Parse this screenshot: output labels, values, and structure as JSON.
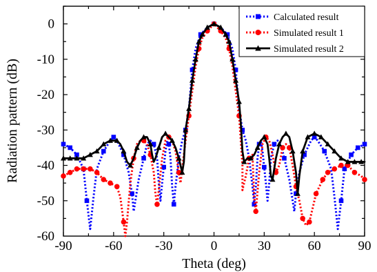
{
  "chart_data": {
    "type": "line",
    "xlabel": "Theta (deg)",
    "ylabel": "Radiation pattern (dB)",
    "xlim": [
      -90,
      90
    ],
    "ylim": [
      -60,
      5
    ],
    "xticks": [
      -90,
      -60,
      -30,
      0,
      30,
      60,
      90
    ],
    "yticks": [
      0,
      -10,
      -20,
      -30,
      -40,
      -50,
      -60
    ],
    "xtick_labels": [
      "-90",
      "-60",
      "-30",
      "0",
      "30",
      "60",
      "90"
    ],
    "ytick_labels": [
      "0",
      "-10",
      "-20",
      "-30",
      "-40",
      "-50",
      "-60"
    ],
    "grid": false,
    "legend_position": "top-right",
    "series": [
      {
        "name": "Calculated result",
        "color": "#0000ff",
        "line_style": "dotted",
        "marker": "square",
        "points": [
          [
            -90,
            -34
          ],
          [
            -86,
            -35
          ],
          [
            -82,
            -37
          ],
          [
            -78,
            -41
          ],
          [
            -76,
            -50
          ],
          [
            -74,
            -58
          ],
          [
            -72,
            -49
          ],
          [
            -70,
            -41
          ],
          [
            -66,
            -36
          ],
          [
            -62,
            -33
          ],
          [
            -60,
            -32
          ],
          [
            -58,
            -33
          ],
          [
            -54,
            -37
          ],
          [
            -51,
            -42
          ],
          [
            -49,
            -48
          ],
          [
            -48,
            -53
          ],
          [
            -47,
            -50
          ],
          [
            -45,
            -44
          ],
          [
            -42,
            -38
          ],
          [
            -40,
            -34
          ],
          [
            -38,
            -33
          ],
          [
            -36,
            -34
          ],
          [
            -34,
            -38
          ],
          [
            -33,
            -45
          ],
          [
            -32,
            -50
          ],
          [
            -31,
            -45
          ],
          [
            -29,
            -36
          ],
          [
            -28,
            -33
          ],
          [
            -27,
            -34
          ],
          [
            -26,
            -38
          ],
          [
            -25,
            -46
          ],
          [
            -24,
            -51
          ],
          [
            -23,
            -46
          ],
          [
            -21,
            -38
          ],
          [
            -19,
            -33
          ],
          [
            -17,
            -30
          ],
          [
            -15,
            -24
          ],
          [
            -13,
            -13
          ],
          [
            -11,
            -7
          ],
          [
            -8,
            -3
          ],
          [
            -4,
            -1
          ],
          [
            0,
            0
          ],
          [
            4,
            -1
          ],
          [
            8,
            -3
          ],
          [
            11,
            -7
          ],
          [
            13,
            -13
          ],
          [
            15,
            -24
          ],
          [
            17,
            -30
          ],
          [
            19,
            -33
          ],
          [
            21,
            -38
          ],
          [
            23,
            -46
          ],
          [
            24,
            -51
          ],
          [
            25,
            -46
          ],
          [
            26,
            -38
          ],
          [
            27,
            -34
          ],
          [
            28,
            -33
          ],
          [
            29,
            -36
          ],
          [
            31,
            -45
          ],
          [
            32,
            -50
          ],
          [
            33,
            -45
          ],
          [
            34,
            -38
          ],
          [
            36,
            -34
          ],
          [
            38,
            -33
          ],
          [
            40,
            -34
          ],
          [
            42,
            -38
          ],
          [
            45,
            -44
          ],
          [
            47,
            -50
          ],
          [
            48,
            -53
          ],
          [
            49,
            -48
          ],
          [
            51,
            -42
          ],
          [
            54,
            -37
          ],
          [
            58,
            -33
          ],
          [
            60,
            -32
          ],
          [
            62,
            -33
          ],
          [
            66,
            -36
          ],
          [
            70,
            -41
          ],
          [
            72,
            -49
          ],
          [
            74,
            -58
          ],
          [
            76,
            -50
          ],
          [
            78,
            -41
          ],
          [
            82,
            -37
          ],
          [
            86,
            -35
          ],
          [
            90,
            -34
          ]
        ],
        "marker_x": [
          -90,
          -86,
          -82,
          -78,
          -76,
          -66,
          -60,
          -54,
          -49,
          -42,
          -36,
          -30,
          -27,
          -24,
          -17,
          -13,
          -8,
          0,
          8,
          13,
          17,
          24,
          27,
          30,
          36,
          42,
          49,
          54,
          60,
          66,
          76,
          78,
          82,
          86,
          90
        ]
      },
      {
        "name": "Simulated result 1",
        "color": "#ff0000",
        "line_style": "dotted",
        "marker": "circle",
        "points": [
          [
            -90,
            -43
          ],
          [
            -86,
            -42
          ],
          [
            -82,
            -41
          ],
          [
            -78,
            -41
          ],
          [
            -74,
            -41
          ],
          [
            -70,
            -42
          ],
          [
            -66,
            -44
          ],
          [
            -62,
            -45
          ],
          [
            -58,
            -46
          ],
          [
            -56,
            -49
          ],
          [
            -54,
            -56
          ],
          [
            -53,
            -60
          ],
          [
            -52,
            -56
          ],
          [
            -50,
            -45
          ],
          [
            -48,
            -38
          ],
          [
            -46,
            -34
          ],
          [
            -44,
            -33
          ],
          [
            -42,
            -33
          ],
          [
            -40,
            -34
          ],
          [
            -38,
            -37
          ],
          [
            -36,
            -42
          ],
          [
            -35,
            -48
          ],
          [
            -34,
            -51
          ],
          [
            -33,
            -47
          ],
          [
            -31,
            -38
          ],
          [
            -29,
            -33
          ],
          [
            -27,
            -32
          ],
          [
            -25,
            -33
          ],
          [
            -23,
            -36
          ],
          [
            -21,
            -42
          ],
          [
            -20,
            -45
          ],
          [
            -19,
            -41
          ],
          [
            -17,
            -33
          ],
          [
            -15,
            -26
          ],
          [
            -13,
            -19
          ],
          [
            -11,
            -12
          ],
          [
            -9,
            -7
          ],
          [
            -7,
            -4
          ],
          [
            -4,
            -2
          ],
          [
            0,
            0
          ],
          [
            4,
            -2
          ],
          [
            7,
            -4
          ],
          [
            9,
            -7
          ],
          [
            11,
            -12
          ],
          [
            13,
            -19
          ],
          [
            15,
            -26
          ],
          [
            17,
            -40
          ],
          [
            17,
            -47
          ],
          [
            19,
            -43
          ],
          [
            21,
            -38
          ],
          [
            23,
            -37
          ],
          [
            24,
            -49
          ],
          [
            25,
            -53
          ],
          [
            27,
            -42
          ],
          [
            29,
            -34
          ],
          [
            31,
            -32
          ],
          [
            33,
            -33
          ],
          [
            35,
            -37
          ],
          [
            37,
            -42
          ],
          [
            39,
            -40
          ],
          [
            41,
            -35
          ],
          [
            43,
            -34
          ],
          [
            45,
            -35
          ],
          [
            47,
            -40
          ],
          [
            49,
            -46
          ],
          [
            51,
            -50
          ],
          [
            53,
            -55
          ],
          [
            55,
            -57
          ],
          [
            57,
            -56
          ],
          [
            59,
            -52
          ],
          [
            61,
            -48
          ],
          [
            63,
            -46
          ],
          [
            65,
            -44
          ],
          [
            68,
            -42
          ],
          [
            72,
            -41
          ],
          [
            76,
            -40
          ],
          [
            80,
            -40
          ],
          [
            84,
            -42
          ],
          [
            88,
            -43
          ],
          [
            90,
            -44
          ]
        ],
        "marker_x": [
          -90,
          -86,
          -82,
          -78,
          -74,
          -70,
          -66,
          -62,
          -58,
          -54,
          -48,
          -42,
          -38,
          -34,
          -27,
          -21,
          -15,
          -9,
          -4,
          0,
          4,
          9,
          15,
          21,
          25,
          31,
          37,
          41,
          45,
          49,
          53,
          57,
          61,
          65,
          68,
          72,
          76,
          80,
          84,
          90
        ]
      },
      {
        "name": "Simulated result 2",
        "color": "#000000",
        "line_style": "solid",
        "marker": "triangle",
        "points": [
          [
            -90,
            -38
          ],
          [
            -86,
            -38
          ],
          [
            -82,
            -38
          ],
          [
            -78,
            -38
          ],
          [
            -74,
            -37
          ],
          [
            -70,
            -36
          ],
          [
            -66,
            -34
          ],
          [
            -62,
            -33
          ],
          [
            -58,
            -33
          ],
          [
            -56,
            -34
          ],
          [
            -54,
            -36
          ],
          [
            -52,
            -39
          ],
          [
            -50,
            -40
          ],
          [
            -48,
            -38
          ],
          [
            -46,
            -35
          ],
          [
            -44,
            -33
          ],
          [
            -42,
            -32
          ],
          [
            -40,
            -32
          ],
          [
            -38,
            -34
          ],
          [
            -37,
            -37
          ],
          [
            -36,
            -39
          ],
          [
            -35,
            -38
          ],
          [
            -33,
            -35
          ],
          [
            -31,
            -32
          ],
          [
            -29,
            -31
          ],
          [
            -27,
            -32
          ],
          [
            -25,
            -33
          ],
          [
            -23,
            -35
          ],
          [
            -21,
            -38
          ],
          [
            -20,
            -40
          ],
          [
            -19,
            -42
          ],
          [
            -18,
            -39
          ],
          [
            -17,
            -30
          ],
          [
            -15,
            -24
          ],
          [
            -13,
            -16
          ],
          [
            -11,
            -10
          ],
          [
            -9,
            -5
          ],
          [
            -7,
            -3
          ],
          [
            -4,
            -1
          ],
          [
            0,
            0
          ],
          [
            4,
            -1
          ],
          [
            7,
            -3
          ],
          [
            9,
            -5
          ],
          [
            11,
            -10
          ],
          [
            13,
            -16
          ],
          [
            15,
            -22
          ],
          [
            16,
            -28
          ],
          [
            17,
            -36
          ],
          [
            18,
            -39
          ],
          [
            20,
            -38
          ],
          [
            22,
            -38
          ],
          [
            24,
            -37
          ],
          [
            26,
            -35
          ],
          [
            28,
            -33
          ],
          [
            30,
            -32
          ],
          [
            32,
            -34
          ],
          [
            33,
            -38
          ],
          [
            34,
            -43
          ],
          [
            35,
            -44
          ],
          [
            37,
            -38
          ],
          [
            39,
            -34
          ],
          [
            41,
            -32
          ],
          [
            43,
            -31
          ],
          [
            45,
            -32
          ],
          [
            47,
            -36
          ],
          [
            49,
            -42
          ],
          [
            50,
            -48
          ],
          [
            51,
            -43
          ],
          [
            53,
            -36
          ],
          [
            56,
            -32
          ],
          [
            60,
            -31
          ],
          [
            64,
            -32
          ],
          [
            68,
            -34
          ],
          [
            72,
            -36
          ],
          [
            76,
            -38
          ],
          [
            80,
            -39
          ],
          [
            84,
            -39
          ],
          [
            88,
            -39
          ],
          [
            90,
            -39
          ]
        ],
        "marker_x": [
          -90,
          -86,
          -82,
          -78,
          -74,
          -70,
          -66,
          -62,
          -58,
          -54,
          -50,
          -46,
          -42,
          -38,
          -33,
          -29,
          -25,
          -21,
          -19,
          -17,
          -15,
          -13,
          -11,
          -9,
          -7,
          -4,
          0,
          4,
          7,
          9,
          11,
          13,
          15,
          18,
          22,
          26,
          30,
          35,
          39,
          43,
          47,
          50,
          53,
          56,
          60,
          64,
          68,
          72,
          76,
          80,
          84,
          88
        ]
      }
    ]
  }
}
